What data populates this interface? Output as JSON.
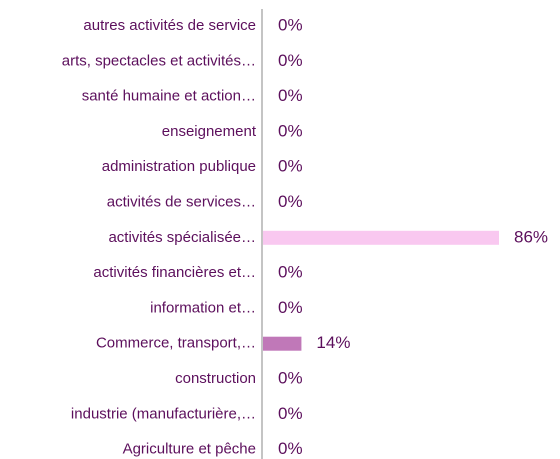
{
  "chart_data": {
    "type": "bar",
    "orientation": "horizontal",
    "categories": [
      "autres activités de service",
      "arts, spectacles et activités…",
      "santé humaine et action…",
      "enseignement",
      "administration publique",
      "activités de services…",
      "activités spécialisée…",
      "activités financières et…",
      "information et…",
      "Commerce, transport,…",
      "construction",
      "industrie (manufacturière,…",
      "Agriculture et pêche"
    ],
    "values": [
      0,
      0,
      0,
      0,
      0,
      0,
      86,
      0,
      0,
      14,
      0,
      0,
      0
    ],
    "value_labels": [
      "0%",
      "0%",
      "0%",
      "0%",
      "0%",
      "0%",
      "86%",
      "0%",
      "0%",
      "14%",
      "0%",
      "0%",
      "0%"
    ],
    "colors": [
      "#c078b8",
      "#c078b8",
      "#c078b8",
      "#c078b8",
      "#c078b8",
      "#c078b8",
      "#f9c8f0",
      "#c078b8",
      "#c078b8",
      "#c078b8",
      "#c078b8",
      "#c078b8",
      "#c078b8"
    ]
  }
}
